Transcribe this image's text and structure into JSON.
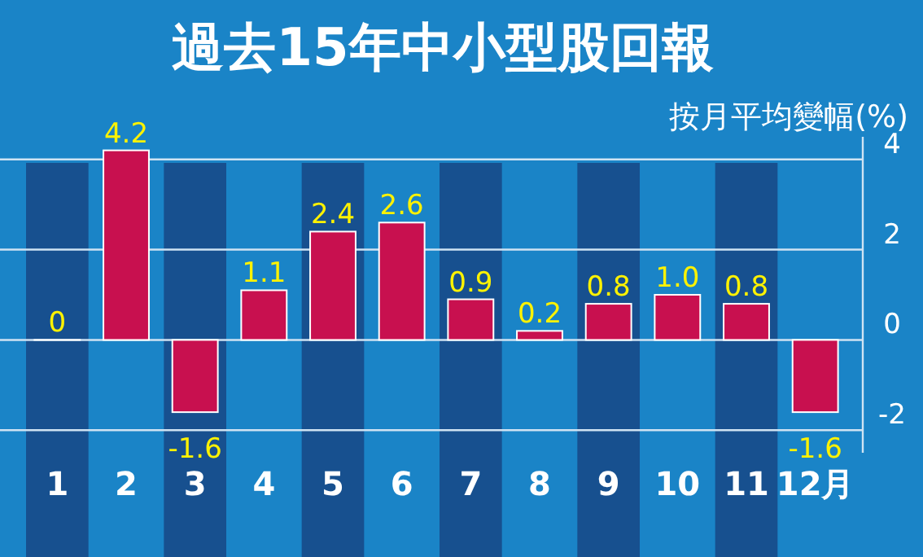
{
  "chart_data": {
    "type": "bar",
    "title": "過去15年中小型股回報",
    "ylabel": "按月平均變幅(%)",
    "categories": [
      "1",
      "2",
      "3",
      "4",
      "5",
      "6",
      "7",
      "8",
      "9",
      "10",
      "11",
      "12月"
    ],
    "values": [
      0,
      4.2,
      -1.6,
      1.1,
      2.4,
      2.6,
      0.9,
      0.2,
      0.8,
      1.0,
      0.8,
      -1.6
    ],
    "value_labels": [
      "0",
      "4.2",
      "-1.6",
      "1.1",
      "2.4",
      "2.6",
      "0.9",
      "0.2",
      "0.8",
      "1.0",
      "0.8",
      "-1.6"
    ],
    "color": "#c8104f",
    "ylim": [
      -2.5,
      4.5
    ],
    "yticks": [
      -2,
      0,
      2,
      4
    ],
    "grid": "y"
  }
}
